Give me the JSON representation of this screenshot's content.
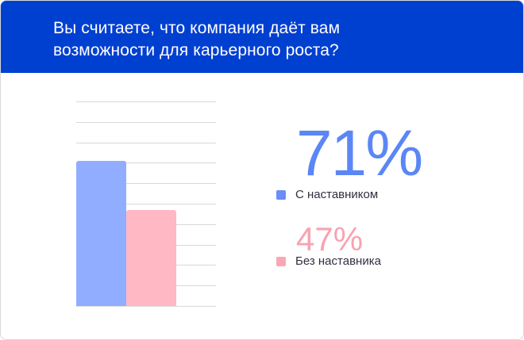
{
  "header": {
    "title_line1": "Вы считаете, что компания даёт вам",
    "title_line2": "возможности для карьерного роста?",
    "background": "#0040d1"
  },
  "chart_data": {
    "type": "bar",
    "title": "Вы считаете, что компания даёт вам возможности для карьерного роста?",
    "categories": [
      "С наставником",
      "Без наставника"
    ],
    "values": [
      71,
      47
    ],
    "value_labels": [
      "71%",
      "47%"
    ],
    "colors": [
      "#90adff",
      "#ffb8c4"
    ],
    "ylim": [
      0,
      100
    ],
    "grid": true,
    "gridline_count": 11,
    "xlabel": "",
    "ylabel": "",
    "legend_position": "right"
  },
  "legend": {
    "items": [
      {
        "label": "С наставником",
        "value": "71%",
        "swatch": "#6a8ef5",
        "value_color": "#5b86f5"
      },
      {
        "label": "Без наставника",
        "value": "47%",
        "swatch": "#f9a7b4",
        "value_color": "#f7a3b2"
      }
    ]
  }
}
